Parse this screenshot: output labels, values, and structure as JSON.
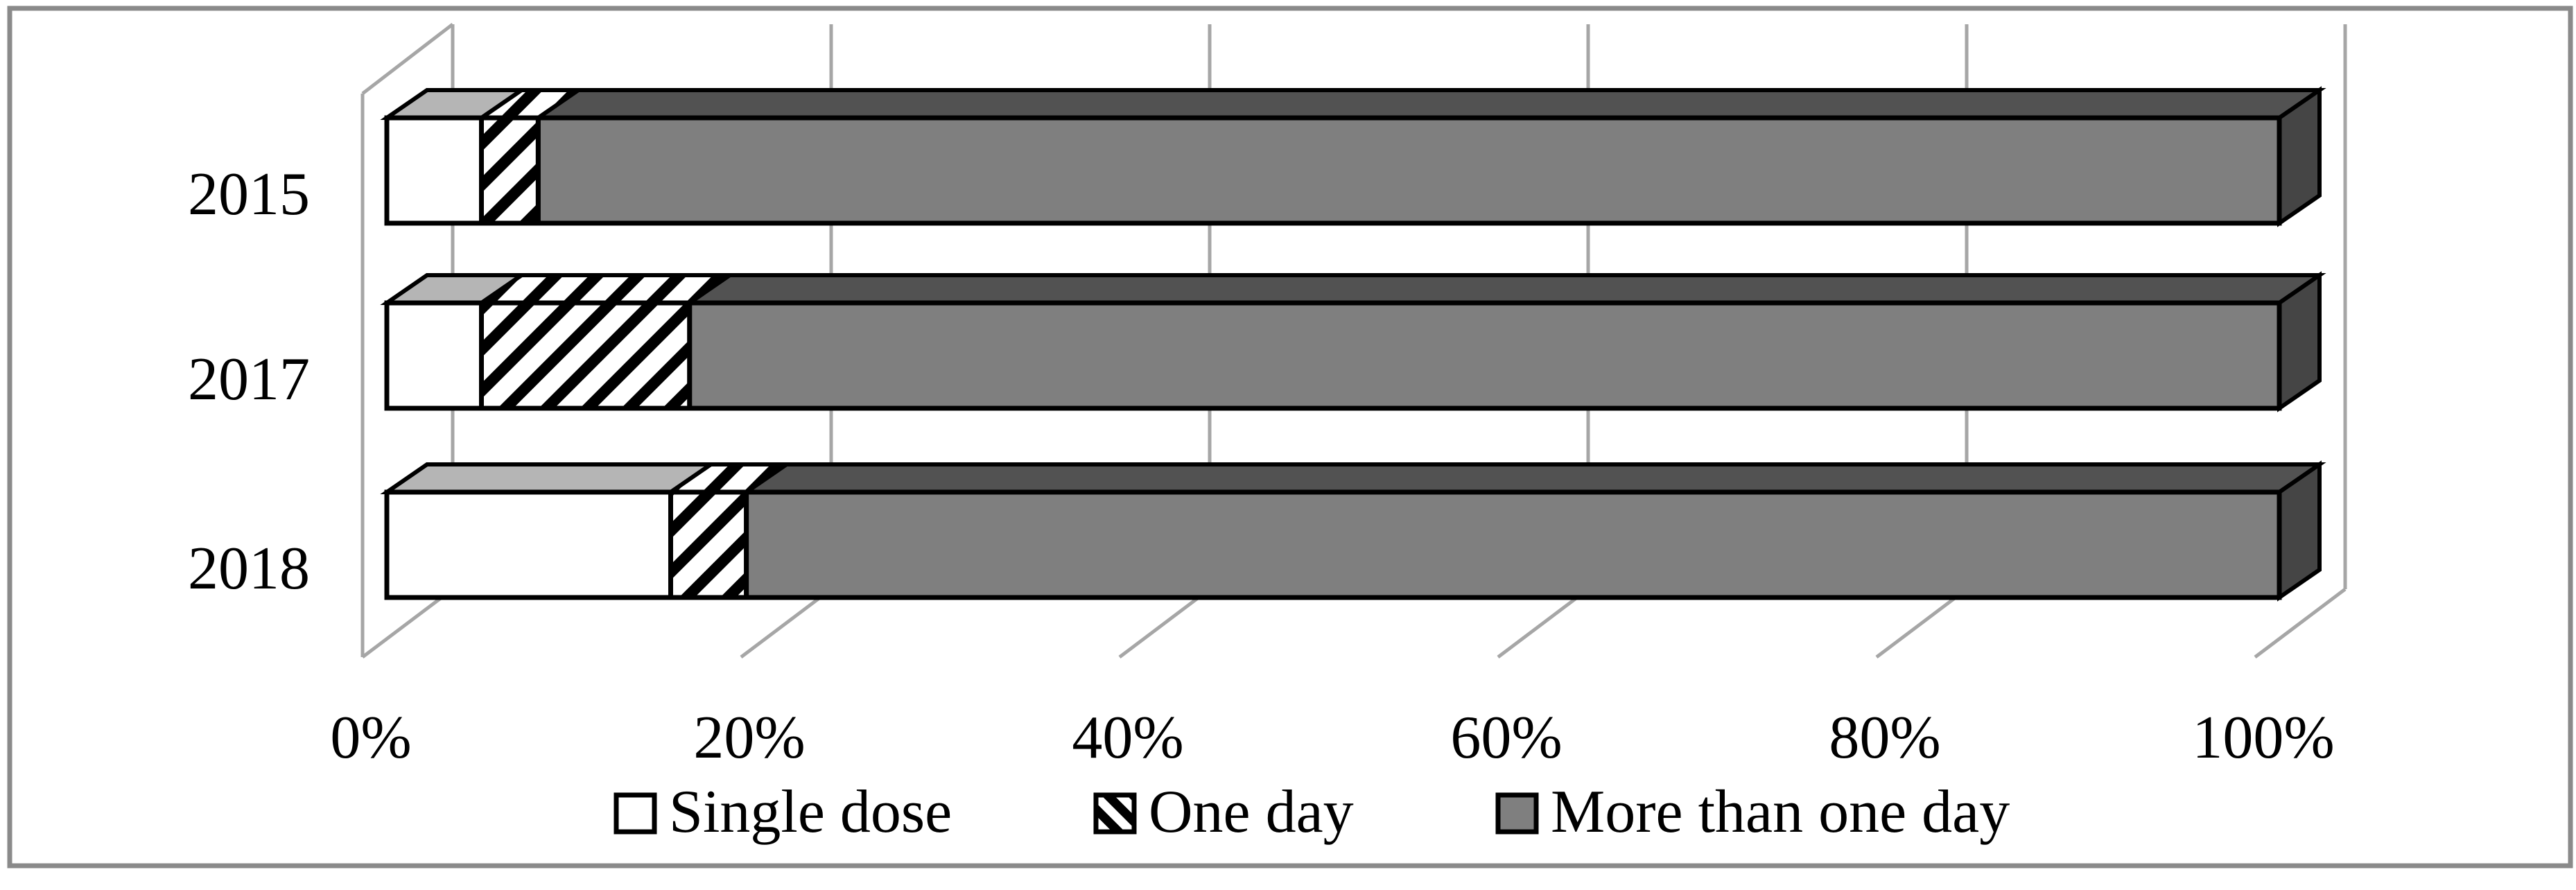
{
  "figure": {
    "background_color": "#ffffff",
    "border_color": "#8a8a8a",
    "text_color": "#000000",
    "gridline_color": "#a6a6a6"
  },
  "chart_data": {
    "type": "bar",
    "subtype": "3d-horizontal-stacked-percent",
    "title": "",
    "categories": [
      "2015",
      "2017",
      "2018"
    ],
    "series": [
      {
        "name": "Single dose",
        "values": [
          5,
          5,
          15
        ],
        "pattern": "solid",
        "front_color": "#ffffff",
        "top_color": "#b5b5b5"
      },
      {
        "name": "One day",
        "values": [
          3,
          11,
          4
        ],
        "pattern": "diagonal-hatch",
        "front_color": "#ffffff",
        "hatch_color": "#000000"
      },
      {
        "name": "More than one day",
        "values": [
          92,
          84,
          81
        ],
        "pattern": "solid",
        "front_color": "#7f7f7f",
        "top_color": "#525252",
        "side_color": "#454545"
      }
    ],
    "x_axis": {
      "range": [
        0,
        100
      ],
      "unit": "%",
      "tick_labels": [
        "0%",
        "20%",
        "40%",
        "60%",
        "80%",
        "100%"
      ]
    },
    "y_axis": {
      "categories_top_to_bottom": [
        "2015",
        "2017",
        "2018"
      ]
    },
    "legend": {
      "position": "bottom",
      "entries": [
        "Single dose",
        "One day",
        "More than one day"
      ]
    },
    "grid": true
  }
}
